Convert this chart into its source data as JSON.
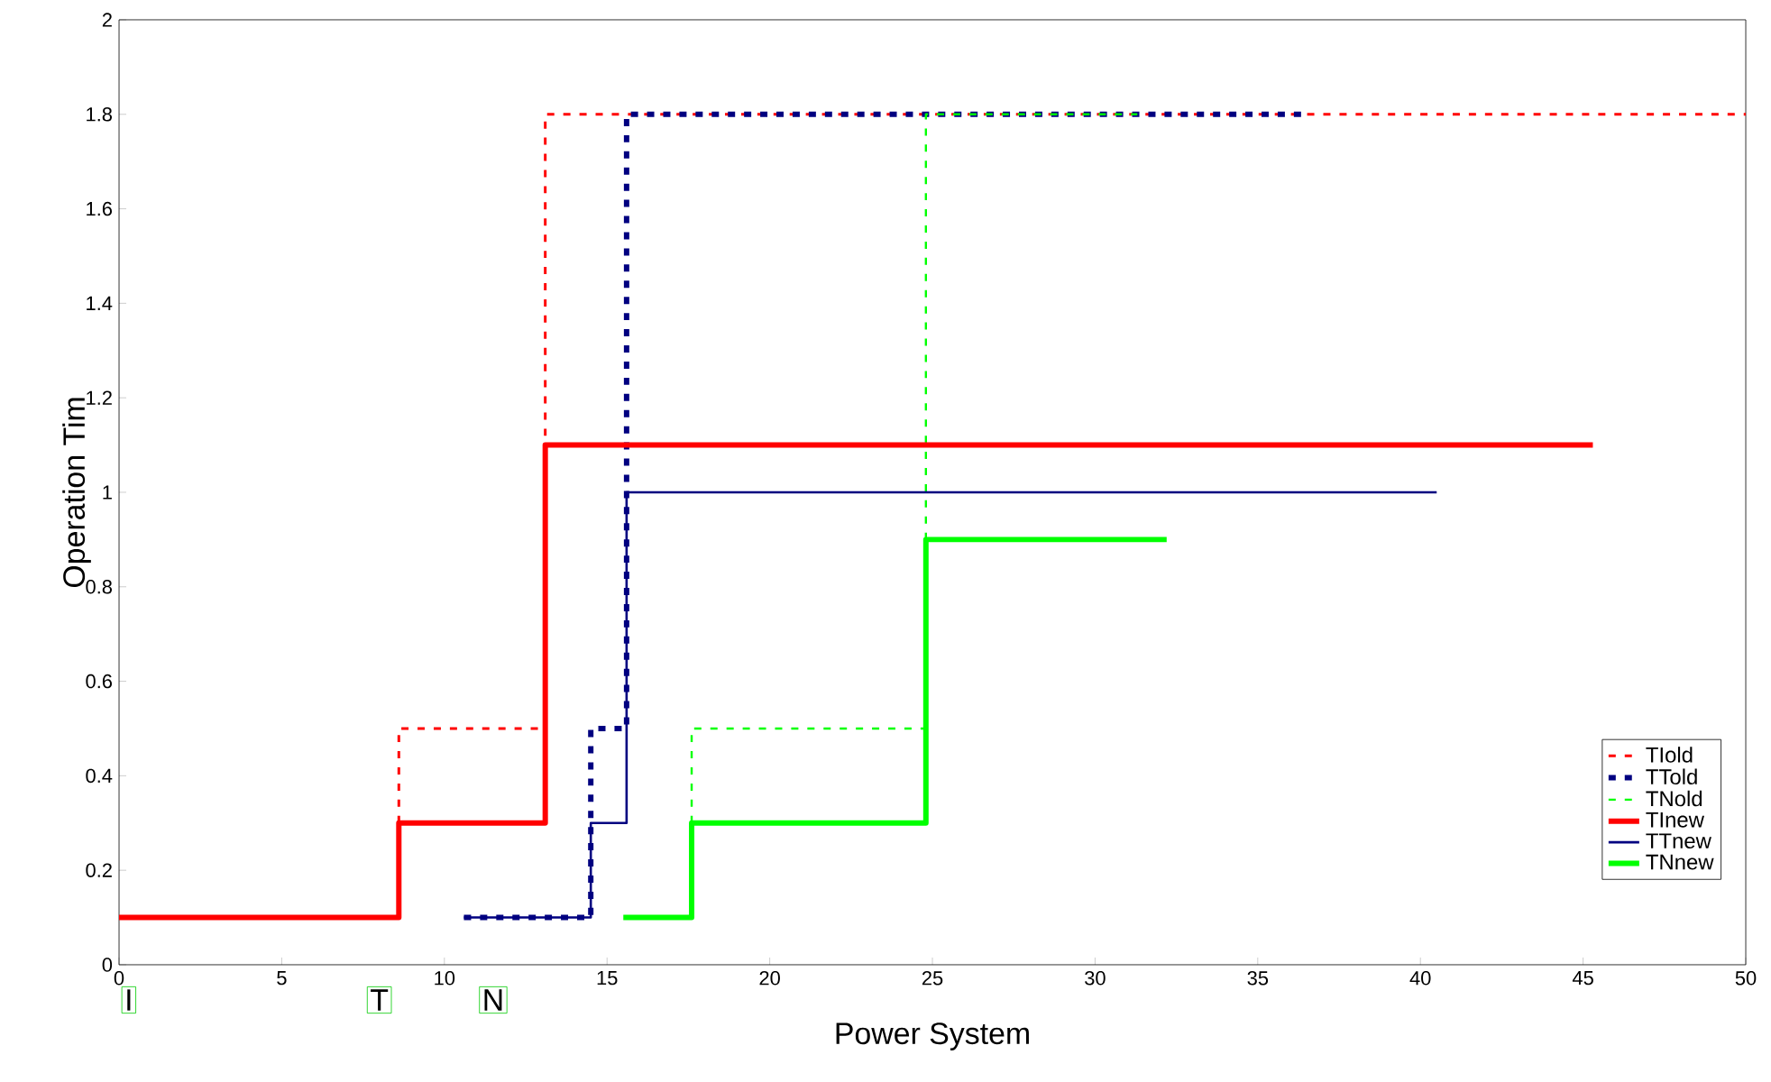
{
  "chart_data": {
    "type": "step",
    "xlabel": "Power System",
    "ylabel": "Operation Tim",
    "xlim": [
      0,
      50
    ],
    "xticks": [
      0,
      5,
      10,
      15,
      20,
      25,
      30,
      35,
      40,
      45,
      50
    ],
    "ylim": [
      0,
      2
    ],
    "yticks": [
      0,
      0.2,
      0.4,
      0.6,
      0.8,
      1,
      1.2,
      1.4,
      1.6,
      1.8,
      2
    ],
    "legend": "bottom right",
    "grid": false,
    "annotations": [
      "I",
      "T",
      "N"
    ],
    "series": [
      {
        "name": "TIold",
        "color": "#ff0000",
        "line_style": "dashed",
        "x": [
          8.6,
          8.6,
          13.1,
          50
        ],
        "values": [
          0.3,
          0.5,
          1.8,
          1.8
        ]
      },
      {
        "name": "TTold",
        "color": "#000080",
        "line_style": "dashed",
        "x": [
          10.6,
          14.5,
          15.6,
          36.4
        ],
        "values": [
          0.1,
          0.5,
          1.8,
          1.8
        ]
      },
      {
        "name": "TNold",
        "color": "#00ff00",
        "line_style": "dashed",
        "x": [
          17.6,
          17.6,
          24.8,
          31.3
        ],
        "values": [
          0.3,
          0.5,
          1.8,
          1.8
        ]
      },
      {
        "name": "TInew",
        "color": "#ff0000",
        "line_style": "solid",
        "x": [
          0,
          8.6,
          13.1,
          45.3
        ],
        "values": [
          0.1,
          0.3,
          1.1,
          1.1
        ]
      },
      {
        "name": "TTnew",
        "color": "#000080",
        "line_style": "solid",
        "x": [
          10.6,
          14.5,
          15.6,
          40.5
        ],
        "values": [
          0.1,
          0.3,
          1.0,
          1.0
        ]
      },
      {
        "name": "TNnew",
        "color": "#00ff00",
        "line_style": "solid",
        "x": [
          15.5,
          17.6,
          24.8,
          32.2
        ],
        "values": [
          0.1,
          0.3,
          0.9,
          0.9
        ]
      }
    ]
  }
}
